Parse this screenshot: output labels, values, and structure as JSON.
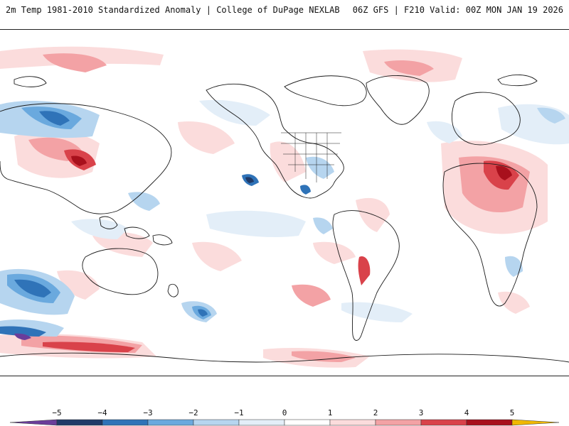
{
  "header": {
    "title": "2m Temp 1981-2010 Standardized Anomaly | College of DuPage NEXLAB",
    "run_info": "06Z GFS | F210 Valid: 00Z MON JAN 19 2026"
  },
  "legend": {
    "tick_labels": [
      "−5",
      "−4",
      "−3",
      "−2",
      "−1",
      "0",
      "1",
      "2",
      "3",
      "4",
      "5"
    ],
    "colors": {
      "below5": "#6a3d9a",
      "n4_5": "#1f3a68",
      "n3_4": "#2f73b8",
      "n2_3": "#6aa9de",
      "n1_2": "#b6d5ef",
      "n0_1": "#e3eef8",
      "p0_1": "#ffffff",
      "p1_2": "#fbdcdc",
      "p2_3": "#f3a2a5",
      "p3_4": "#d9424a",
      "p4_5": "#a8101c",
      "above5": "#f0b800"
    }
  }
}
